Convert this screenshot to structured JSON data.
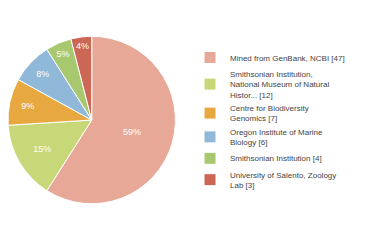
{
  "chart_data": {
    "type": "pie",
    "categories": [
      "Mined from GenBank, NCBI [47]",
      "Smithsonian Institution,\nNational Museum of Natural\nHistor... [12]",
      "Centre for Biodiversity\nGenomics [7]",
      "Oregon Institute of Marine\nBiology [6]",
      "Smithsonian Institution [4]",
      "University of Salento, Zoology\nLab [3]"
    ],
    "values": [
      59,
      15,
      9,
      8,
      5,
      4
    ],
    "value_labels": [
      "59%",
      "15%",
      "9%",
      "8%",
      "5%",
      "4%"
    ],
    "colors": [
      "#e8a898",
      "#c8d878",
      "#e8a840",
      "#90b8d8",
      "#a8c870",
      "#cc6655"
    ],
    "data_labels": true,
    "legend": "right"
  }
}
